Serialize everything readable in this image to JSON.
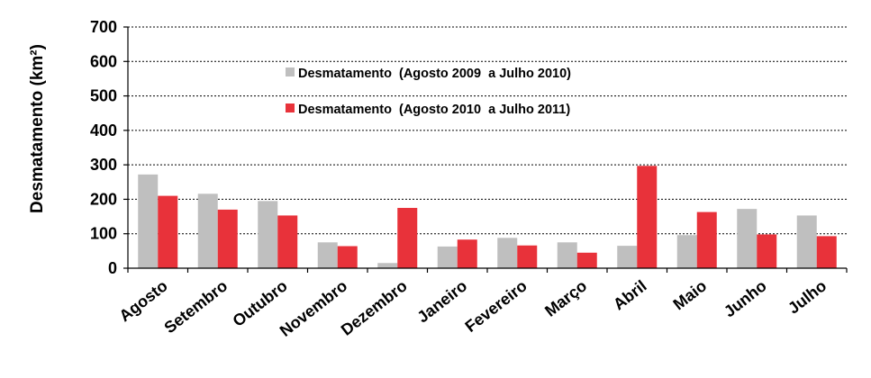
{
  "chart_data": {
    "type": "bar",
    "ylabel": "Desmatamento (km²)",
    "xlabel": "",
    "title": "",
    "ylim": [
      0,
      700
    ],
    "yticks": [
      0,
      100,
      200,
      300,
      400,
      500,
      600,
      700
    ],
    "grid": true,
    "legend_position": "top-center",
    "categories": [
      "Agosto",
      "Setembro",
      "Outubro",
      "Novembro",
      "Dezembro",
      "Janeiro",
      "Fevereiro",
      "Março",
      "Abril",
      "Maio",
      "Junho",
      "Julho"
    ],
    "series": [
      {
        "name": "Desmatamento  (Agosto 2009  a Julho 2010)",
        "color": "#bfbfbf",
        "values": [
          272,
          216,
          195,
          75,
          15,
          63,
          88,
          75,
          65,
          96,
          172,
          153
        ]
      },
      {
        "name": "Desmatamento  (Agosto 2010  a Julho 2011)",
        "color": "#e8323a",
        "values": [
          210,
          170,
          153,
          64,
          175,
          83,
          66,
          45,
          297,
          163,
          98,
          93
        ]
      }
    ]
  }
}
